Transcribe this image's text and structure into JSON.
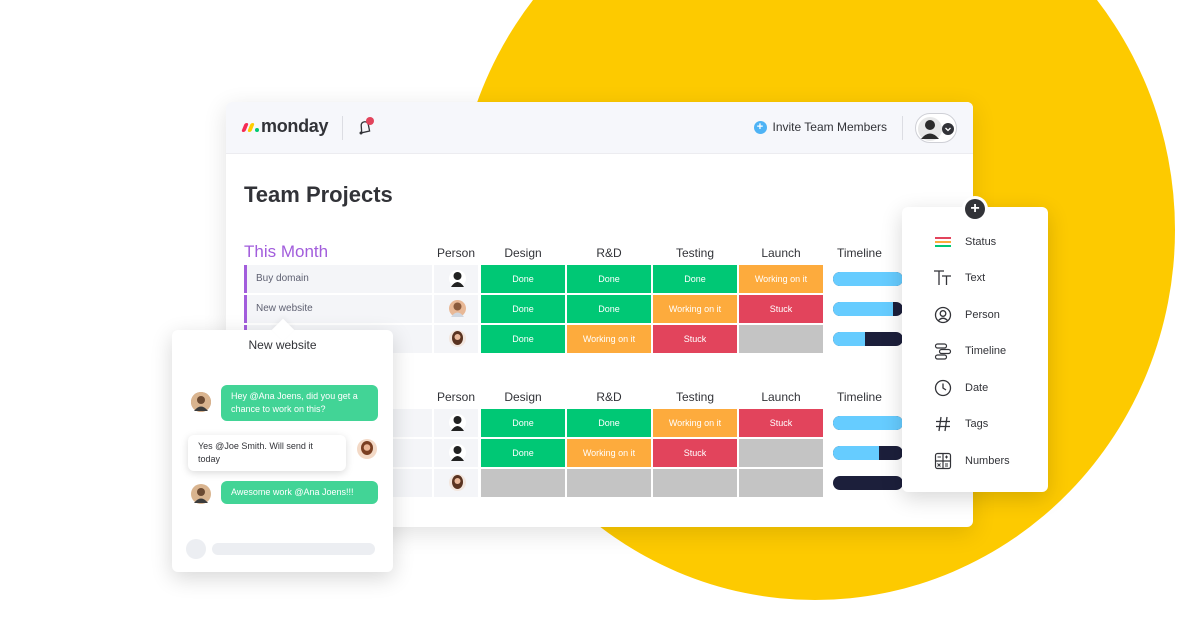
{
  "colors": {
    "accent_yellow": "#fdca00",
    "group_purple": "#a25ddc",
    "done": "#00c875",
    "working_on_it": "#fdab3d",
    "stuck": "#e2445c",
    "empty": "#c4c4c4",
    "chat_green": "#42d496"
  },
  "header": {
    "logo_text": "monday",
    "invite_label": "Invite Team Members",
    "icons": [
      "monday-logo-icon",
      "bell-icon",
      "plus-circle-icon",
      "user-avatar",
      "chevron-down-icon"
    ]
  },
  "board": {
    "title": "Team Projects",
    "columns": [
      "Person",
      "Design",
      "R&D",
      "Testing",
      "Launch",
      "Timeline"
    ],
    "groups": [
      {
        "title": "This Month",
        "rows": [
          {
            "name": "Buy domain",
            "statuses": [
              "Done",
              "Done",
              "Done",
              "Working on it"
            ],
            "timeline_progress": 1.0
          },
          {
            "name": "New website",
            "statuses": [
              "Done",
              "Done",
              "Working on it",
              "Stuck"
            ],
            "timeline_progress": 0.85
          },
          {
            "name": "",
            "statuses": [
              "Done",
              "Working on it",
              "Stuck",
              ""
            ],
            "timeline_progress": 0.45
          }
        ]
      },
      {
        "title": "",
        "rows": [
          {
            "name": "",
            "statuses": [
              "Done",
              "Done",
              "Working on it",
              "Stuck"
            ],
            "timeline_progress": 1.0
          },
          {
            "name": "",
            "statuses": [
              "Done",
              "Working on it",
              "Stuck",
              ""
            ],
            "timeline_progress": 0.65
          },
          {
            "name": "",
            "statuses": [
              "",
              "",
              "",
              ""
            ],
            "timeline_progress": 0.0
          }
        ]
      }
    ]
  },
  "chat": {
    "title": "New website",
    "messages": [
      {
        "text": "Hey @Ana Joens, did you get a chance to work on this?",
        "style": "green",
        "side": "left"
      },
      {
        "text": "Yes @Joe Smith. Will send it today",
        "style": "white",
        "side": "right"
      },
      {
        "text": "Awesome work @Ana Joens!!!",
        "style": "green",
        "side": "left"
      }
    ]
  },
  "column_menu": {
    "items": [
      {
        "label": "Status",
        "icon": "status-icon"
      },
      {
        "label": "Text",
        "icon": "text-icon"
      },
      {
        "label": "Person",
        "icon": "person-icon"
      },
      {
        "label": "Timeline",
        "icon": "timeline-icon"
      },
      {
        "label": "Date",
        "icon": "clock-icon"
      },
      {
        "label": "Tags",
        "icon": "hash-icon"
      },
      {
        "label": "Numbers",
        "icon": "numbers-icon"
      }
    ]
  }
}
